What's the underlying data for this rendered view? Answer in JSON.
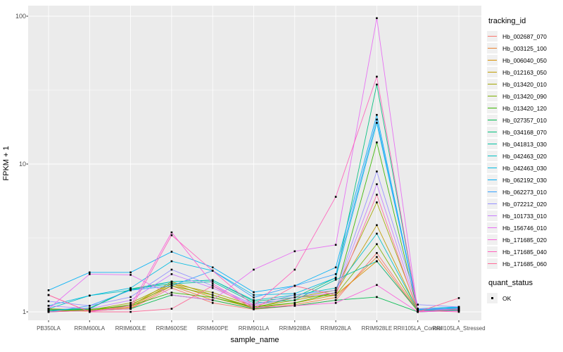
{
  "colors": {
    "panel_bg": "#EBEBEB",
    "gridline": "#FFFFFF",
    "axis_text": "#4D4D4D",
    "tick_mark": "#333333",
    "legend_key_bg": "#F0F0F0",
    "point": "#000000"
  },
  "chart_data": {
    "type": "line",
    "xlabel": "sample_name",
    "ylabel": "FPKM + 1",
    "y_scale": "log10",
    "y_ticks": [
      {
        "label": "1",
        "value": 1
      },
      {
        "label": "10",
        "value": 10
      },
      {
        "label": "100",
        "value": 100
      }
    ],
    "y_minor": [
      3.162,
      31.62
    ],
    "ylim": [
      0.88,
      118
    ],
    "grid": "on",
    "legend_position": "right",
    "legend_title": "tracking_id",
    "point_legend": {
      "title": "quant_status",
      "label": "OK"
    },
    "x_categories": [
      "PB350LA",
      "RRIM600LA",
      "RRIM600LE",
      "RRIM600SE",
      "RRIM600PE",
      "RRIM901LA",
      "RRIM928BA",
      "RRIM928LA",
      "RRIM928LE",
      "RRII105LA_Control",
      "RRII105LA_Stressed"
    ],
    "series": [
      {
        "name": "Hb_002687_070",
        "color": "#F8766D",
        "values": [
          1.05,
          1.02,
          1.05,
          1.45,
          1.15,
          1.04,
          1.1,
          1.2,
          2.5,
          1.02,
          1.03
        ]
      },
      {
        "name": "Hb_003125_100",
        "color": "#EA8331",
        "values": [
          1.02,
          1.01,
          1.06,
          1.5,
          1.2,
          1.05,
          1.12,
          1.25,
          2.35,
          1.01,
          1.02
        ]
      },
      {
        "name": "Hb_006040_050",
        "color": "#D89000",
        "values": [
          1.03,
          1.01,
          1.08,
          1.55,
          1.25,
          1.06,
          1.15,
          1.3,
          2.2,
          1.01,
          1.02
        ]
      },
      {
        "name": "Hb_012163_050",
        "color": "#C09B00",
        "values": [
          1.04,
          1.02,
          1.1,
          1.6,
          1.3,
          1.08,
          1.2,
          1.35,
          3.86,
          1.02,
          1.03
        ]
      },
      {
        "name": "Hb_013420_010",
        "color": "#A3A500",
        "values": [
          1.05,
          1.03,
          1.15,
          1.55,
          1.35,
          1.1,
          1.25,
          1.4,
          5.5,
          1.03,
          1.02
        ]
      },
      {
        "name": "Hb_013420_090",
        "color": "#7CAE00",
        "values": [
          1.03,
          1.02,
          1.12,
          1.5,
          1.3,
          1.06,
          1.25,
          1.3,
          2.87,
          1.02,
          1.04
        ]
      },
      {
        "name": "Hb_013420_120",
        "color": "#39B600",
        "values": [
          1.02,
          1.04,
          1.1,
          1.35,
          1.25,
          1.08,
          1.15,
          1.35,
          14.0,
          1.01,
          1.03
        ]
      },
      {
        "name": "Hb_027357_010",
        "color": "#00BB4E",
        "values": [
          1.0,
          1.02,
          1.05,
          1.3,
          1.2,
          1.05,
          1.1,
          1.2,
          1.26,
          1.0,
          1.02
        ]
      },
      {
        "name": "Hb_034168_070",
        "color": "#00BF7D",
        "values": [
          1.03,
          1.06,
          1.43,
          1.6,
          1.64,
          1.18,
          1.25,
          1.7,
          34.5,
          1.02,
          1.03
        ]
      },
      {
        "name": "Hb_041813_030",
        "color": "#00C1A3",
        "values": [
          1.02,
          1.05,
          1.42,
          1.55,
          1.6,
          1.15,
          1.2,
          1.65,
          2.2,
          1.02,
          1.05
        ]
      },
      {
        "name": "Hb_042463_020",
        "color": "#00BFC4",
        "values": [
          1.05,
          1.29,
          1.4,
          1.6,
          1.64,
          1.2,
          1.3,
          1.45,
          3.38,
          1.03,
          1.06
        ]
      },
      {
        "name": "Hb_042463_030",
        "color": "#00BAE0",
        "values": [
          1.1,
          1.29,
          1.45,
          2.2,
          1.9,
          1.3,
          1.33,
          1.7,
          19.0,
          1.05,
          1.08
        ]
      },
      {
        "name": "Hb_062192_030",
        "color": "#00B0F6",
        "values": [
          1.4,
          1.85,
          1.85,
          2.55,
          2.0,
          1.36,
          1.5,
          2.0,
          21.5,
          1.04,
          1.07
        ]
      },
      {
        "name": "Hb_062273_010",
        "color": "#35A2FF",
        "values": [
          1.0,
          1.1,
          1.4,
          1.5,
          1.9,
          1.25,
          1.5,
          1.8,
          20.0,
          1.03,
          1.05
        ]
      },
      {
        "name": "Hb_072212_020",
        "color": "#9590FF",
        "values": [
          1.18,
          1.1,
          1.26,
          1.93,
          1.5,
          1.12,
          1.3,
          1.4,
          8.9,
          1.12,
          1.08
        ]
      },
      {
        "name": "Hb_101733_010",
        "color": "#C77CFF",
        "values": [
          1.1,
          1.05,
          1.2,
          1.8,
          1.45,
          1.1,
          1.25,
          1.35,
          7.3,
          1.05,
          1.04
        ]
      },
      {
        "name": "Hb_156746_010",
        "color": "#E76BF3",
        "values": [
          1.05,
          1.8,
          1.78,
          1.3,
          1.2,
          1.93,
          2.57,
          2.84,
          97.0,
          1.0,
          1.02
        ]
      },
      {
        "name": "Hb_171685_020",
        "color": "#FA62DB",
        "values": [
          1.3,
          1.0,
          1.1,
          3.45,
          1.55,
          1.07,
          1.1,
          1.15,
          1.52,
          1.0,
          1.05
        ]
      },
      {
        "name": "Hb_171685_040",
        "color": "#FF62BC",
        "values": [
          1.0,
          1.02,
          1.05,
          3.3,
          1.9,
          1.1,
          1.93,
          6.0,
          39.0,
          1.02,
          1.0
        ]
      },
      {
        "name": "Hb_171685_060",
        "color": "#FF6A98",
        "values": [
          1.3,
          1.0,
          1.0,
          1.05,
          1.5,
          1.05,
          1.5,
          1.3,
          6.2,
          1.0,
          1.24
        ]
      }
    ]
  }
}
